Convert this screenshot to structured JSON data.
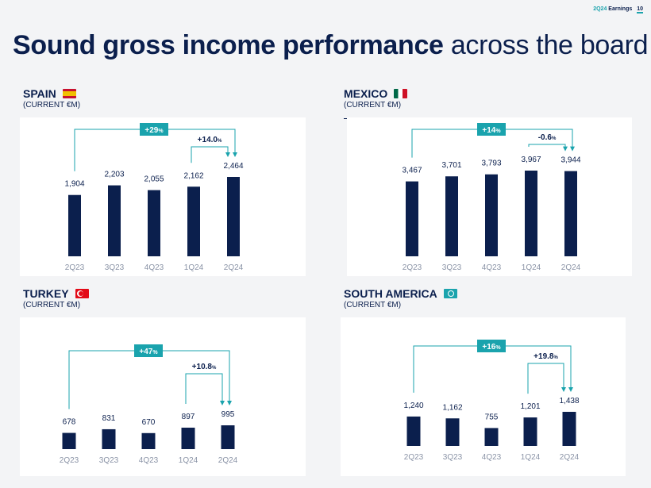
{
  "header": {
    "label": "2Q24",
    "section": "Earnings",
    "page": "10"
  },
  "title": {
    "bold": "Sound gross income performance",
    "rest": " across the board"
  },
  "colors": {
    "bar": "#0b1f4d",
    "accent": "#1aa3ad"
  },
  "panels": [
    {
      "name": "SPAIN",
      "sub": "(CURRENT €M)",
      "flag": "spain-flag-icon"
    },
    {
      "name": "MEXICO",
      "sub": "(CURRENT €M)",
      "flag": "mexico-flag-icon"
    },
    {
      "name": "TURKEY",
      "sub": "(CURRENT €M)",
      "flag": "turkey-flag-icon"
    },
    {
      "name": "SOUTH AMERICA",
      "sub": "(CURRENT €M)",
      "flag": "south-america-icon"
    }
  ],
  "chart_data": [
    {
      "type": "bar",
      "categories": [
        "2Q23",
        "3Q23",
        "4Q23",
        "1Q24",
        "2Q24"
      ],
      "values": [
        1904,
        2203,
        2055,
        2162,
        2464
      ],
      "data_labels": [
        "1,904",
        "2,203",
        "2,055",
        "2,162",
        "2,464"
      ],
      "annotations": {
        "yoy": {
          "num": "+29",
          "suf": "%"
        },
        "qoq": {
          "num": "+14.0",
          "suf": "%"
        }
      }
    },
    {
      "type": "bar",
      "categories": [
        "2Q23",
        "3Q23",
        "4Q23",
        "1Q24",
        "2Q24"
      ],
      "values": [
        3467,
        3701,
        3793,
        3967,
        3944
      ],
      "data_labels": [
        "3,467",
        "3,701",
        "3,793",
        "3,967",
        "3,944"
      ],
      "annotations": {
        "yoy": {
          "num": "+14",
          "suf": "%"
        },
        "qoq": {
          "num": "-0.6",
          "suf": "%"
        }
      }
    },
    {
      "type": "bar",
      "categories": [
        "2Q23",
        "3Q23",
        "4Q23",
        "1Q24",
        "2Q24"
      ],
      "values": [
        678,
        831,
        670,
        897,
        995
      ],
      "data_labels": [
        "678",
        "831",
        "670",
        "897",
        "995"
      ],
      "annotations": {
        "yoy": {
          "num": "+47",
          "suf": "%"
        },
        "qoq": {
          "num": "+10.8",
          "suf": "%"
        }
      }
    },
    {
      "type": "bar",
      "categories": [
        "2Q23",
        "3Q23",
        "4Q23",
        "1Q24",
        "2Q24"
      ],
      "values": [
        1240,
        1162,
        755,
        1201,
        1438
      ],
      "data_labels": [
        "1,240",
        "1,162",
        "755",
        "1,201",
        "1,438"
      ],
      "annotations": {
        "yoy": {
          "num": "+16",
          "suf": "%"
        },
        "qoq": {
          "num": "+19.8",
          "suf": "%"
        }
      }
    }
  ]
}
